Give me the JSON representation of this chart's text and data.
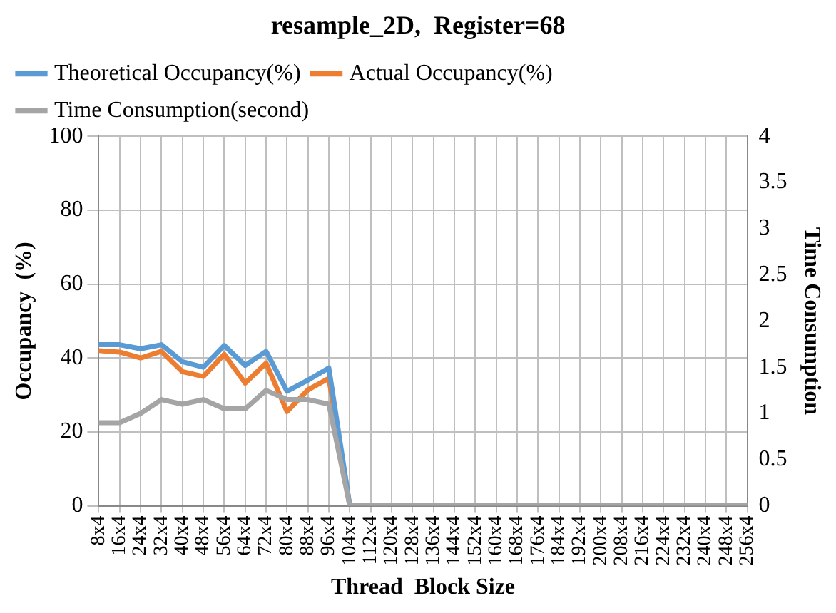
{
  "chart_data": {
    "type": "line",
    "title": "resample_2D,  Register=68",
    "xlabel": "Thread  Block Size",
    "ylabel": "Occupancy  (%)",
    "y2label": "Time Consumption",
    "categories": [
      "8x4",
      "16x4",
      "24x4",
      "32x4",
      "40x4",
      "48x4",
      "56x4",
      "64x4",
      "72x4",
      "80x4",
      "88x4",
      "96x4",
      "104x4",
      "112x4",
      "120x4",
      "128x4",
      "136x4",
      "144x4",
      "152x4",
      "160x4",
      "168x4",
      "176x4",
      "184x4",
      "192x4",
      "200x4",
      "208x4",
      "216x4",
      "224x4",
      "232x4",
      "240x4",
      "248x4",
      "256x4"
    ],
    "series": [
      {
        "name": "Theoretical Occupancy(%)",
        "color": "#5b9bd5",
        "values": [
          43.6,
          43.6,
          42.5,
          43.6,
          39,
          37.5,
          43.4,
          38,
          41.8,
          31,
          34,
          37.3,
          0,
          null,
          null,
          null,
          null,
          null,
          null,
          null,
          null,
          null,
          null,
          null,
          null,
          null,
          null,
          null,
          null,
          null,
          null,
          null
        ]
      },
      {
        "name": "Actual Occupancy(%)",
        "color": "#ed7d31",
        "values": [
          42,
          41.6,
          40,
          41.8,
          36.3,
          35,
          41,
          33.2,
          38.6,
          25.5,
          31.4,
          34.5,
          0,
          null,
          null,
          null,
          null,
          null,
          null,
          null,
          null,
          null,
          null,
          null,
          null,
          null,
          null,
          null,
          null,
          null,
          null,
          null
        ]
      },
      {
        "name": "Time Consumption(second)",
        "color": "#a5a5a5",
        "axis": "y2",
        "values": [
          0.9,
          0.9,
          1.0,
          1.15,
          1.1,
          1.15,
          1.05,
          1.05,
          1.25,
          1.15,
          1.15,
          1.1,
          0,
          0,
          0,
          0,
          0,
          0,
          0,
          0,
          0,
          0,
          0,
          0,
          0,
          0,
          0,
          0,
          0,
          0,
          0,
          0
        ]
      }
    ],
    "ylim": [
      0,
      100
    ],
    "yticks": [
      0,
      20,
      40,
      60,
      80,
      100
    ],
    "y2lim": [
      0,
      4
    ],
    "y2ticks": [
      0,
      0.5,
      1,
      1.5,
      2,
      2.5,
      3,
      3.5,
      4
    ],
    "grid": true,
    "legend": "top",
    "marker": "none",
    "line_style": "solid"
  }
}
